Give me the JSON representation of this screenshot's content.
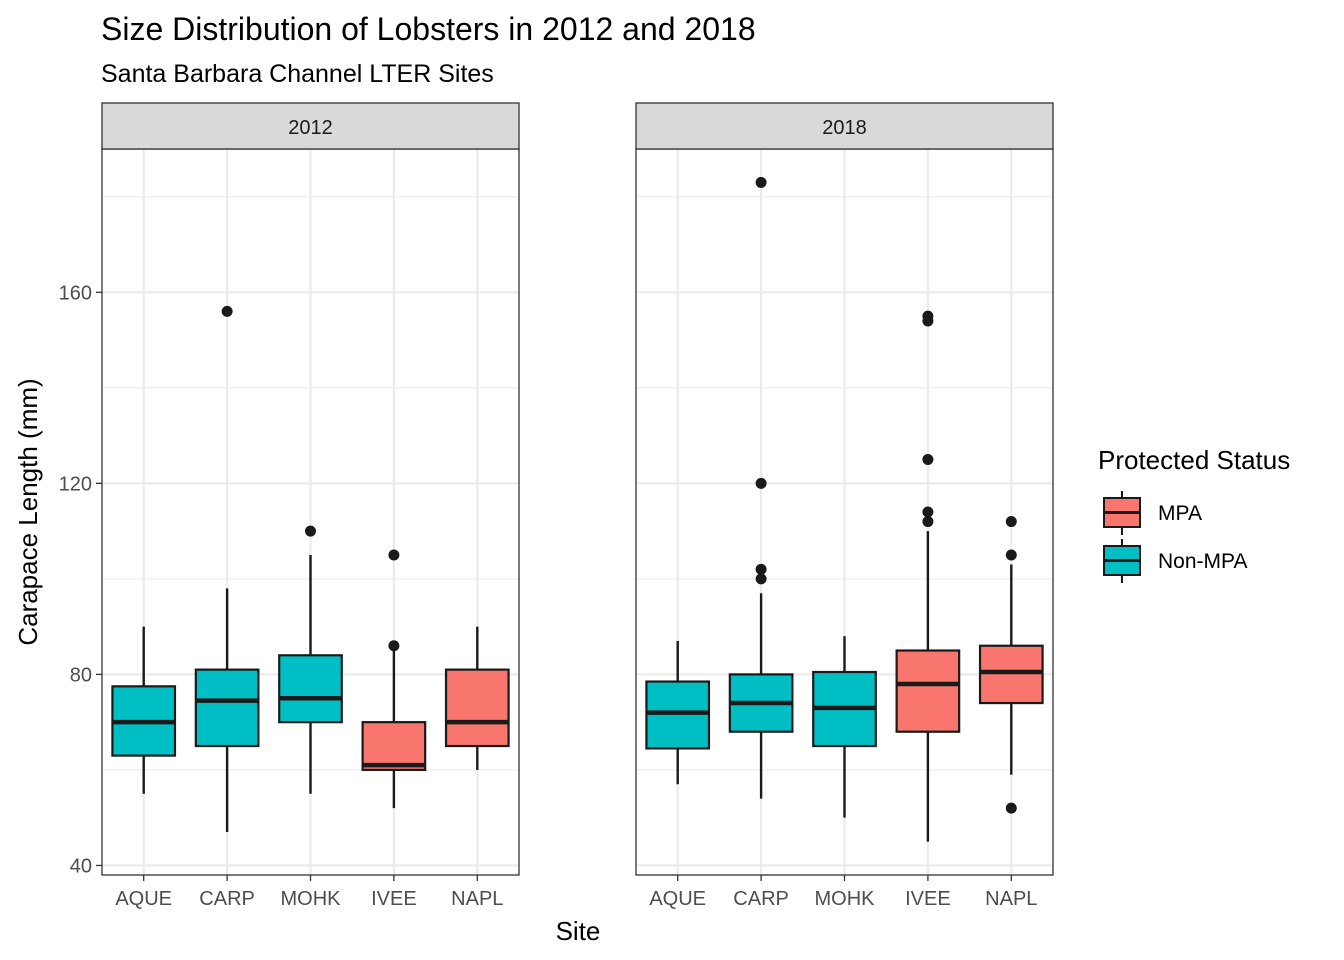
{
  "chart_data": {
    "type": "boxplot",
    "title": "Size Distribution of Lobsters in 2012 and 2018",
    "subtitle": "Santa Barbara Channel LTER Sites",
    "xlabel": "Site",
    "ylabel": "Carapace Length (mm)",
    "ylim": [
      38,
      190
    ],
    "yticks": [
      40,
      80,
      120,
      160
    ],
    "grid": true,
    "legend": {
      "title": "Protected Status",
      "placement": "right",
      "entries": [
        {
          "label": "MPA",
          "color": "#F8766D"
        },
        {
          "label": "Non-MPA",
          "color": "#00BFC4"
        }
      ]
    },
    "categories": [
      "AQUE",
      "CARP",
      "MOHK",
      "IVEE",
      "NAPL"
    ],
    "panels": [
      {
        "label": "2012",
        "boxes": [
          {
            "site": "AQUE",
            "status": "Non-MPA",
            "min": 55,
            "q1": 63,
            "median": 70,
            "q3": 77.5,
            "max": 90,
            "outliers": []
          },
          {
            "site": "CARP",
            "status": "Non-MPA",
            "min": 47,
            "q1": 65,
            "median": 74.5,
            "q3": 81,
            "max": 98,
            "outliers": [
              156
            ]
          },
          {
            "site": "MOHK",
            "status": "Non-MPA",
            "min": 55,
            "q1": 70,
            "median": 75,
            "q3": 84,
            "max": 105,
            "outliers": [
              110
            ]
          },
          {
            "site": "IVEE",
            "status": "MPA",
            "min": 52,
            "q1": 60,
            "median": 61,
            "q3": 70,
            "max": 85,
            "outliers": [
              86,
              105
            ]
          },
          {
            "site": "NAPL",
            "status": "MPA",
            "min": 60,
            "q1": 65,
            "median": 70,
            "q3": 81,
            "max": 90,
            "outliers": []
          }
        ]
      },
      {
        "label": "2018",
        "boxes": [
          {
            "site": "AQUE",
            "status": "Non-MPA",
            "min": 57,
            "q1": 64.5,
            "median": 72,
            "q3": 78.5,
            "max": 87,
            "outliers": []
          },
          {
            "site": "CARP",
            "status": "Non-MPA",
            "min": 54,
            "q1": 68,
            "median": 74,
            "q3": 80,
            "max": 97,
            "outliers": [
              100,
              102,
              120,
              183
            ]
          },
          {
            "site": "MOHK",
            "status": "Non-MPA",
            "min": 50,
            "q1": 65,
            "median": 73,
            "q3": 80.5,
            "max": 88,
            "outliers": []
          },
          {
            "site": "IVEE",
            "status": "MPA",
            "min": 45,
            "q1": 68,
            "median": 78,
            "q3": 85,
            "max": 110,
            "outliers": [
              112,
              114,
              125,
              154,
              155
            ]
          },
          {
            "site": "NAPL",
            "status": "MPA",
            "min": 59,
            "q1": 74,
            "median": 80.5,
            "q3": 86,
            "max": 103,
            "outliers": [
              52,
              105,
              112
            ]
          }
        ]
      }
    ]
  }
}
